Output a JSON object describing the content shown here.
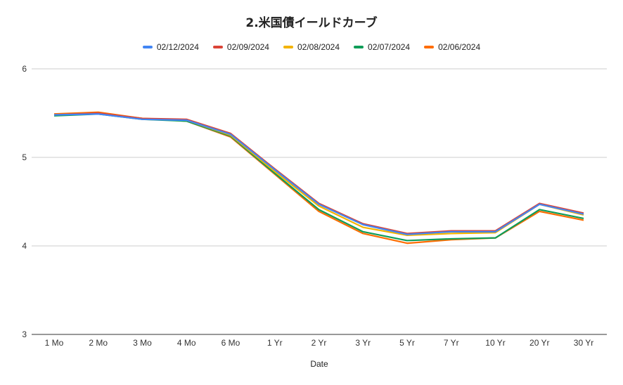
{
  "chart_data": {
    "type": "line",
    "title": "2.米国債イールドカーブ",
    "xlabel": "Date",
    "ylabel": "",
    "ylim": [
      3,
      6
    ],
    "yticks": [
      "3",
      "4",
      "5",
      "6"
    ],
    "grid": true,
    "legend_position": "top",
    "categories": [
      "1 Mo",
      "2 Mo",
      "3 Mo",
      "4 Mo",
      "6 Mo",
      "1 Yr",
      "2 Yr",
      "3 Yr",
      "5 Yr",
      "7 Yr",
      "10 Yr",
      "20 Yr",
      "30 Yr"
    ],
    "series": [
      {
        "name": "02/12/2024",
        "color": "#4285f4",
        "values": [
          5.48,
          5.49,
          5.43,
          5.42,
          5.26,
          4.86,
          4.47,
          4.24,
          4.13,
          4.16,
          4.16,
          4.47,
          4.36
        ]
      },
      {
        "name": "02/09/2024",
        "color": "#db4437",
        "values": [
          5.48,
          5.5,
          5.44,
          5.43,
          5.27,
          4.87,
          4.48,
          4.25,
          4.14,
          4.17,
          4.17,
          4.48,
          4.37
        ]
      },
      {
        "name": "02/08/2024",
        "color": "#f4b400",
        "values": [
          5.48,
          5.5,
          5.44,
          5.42,
          5.25,
          4.84,
          4.45,
          4.21,
          4.12,
          4.14,
          4.15,
          4.47,
          4.35
        ]
      },
      {
        "name": "02/07/2024",
        "color": "#0f9d58",
        "values": [
          5.47,
          5.49,
          5.43,
          5.41,
          5.24,
          4.82,
          4.41,
          4.16,
          4.06,
          4.08,
          4.09,
          4.41,
          4.31
        ]
      },
      {
        "name": "02/06/2024",
        "color": "#ff6d01",
        "values": [
          5.49,
          5.51,
          5.44,
          5.41,
          5.23,
          4.81,
          4.39,
          4.14,
          4.03,
          4.07,
          4.09,
          4.39,
          4.29
        ]
      }
    ]
  }
}
